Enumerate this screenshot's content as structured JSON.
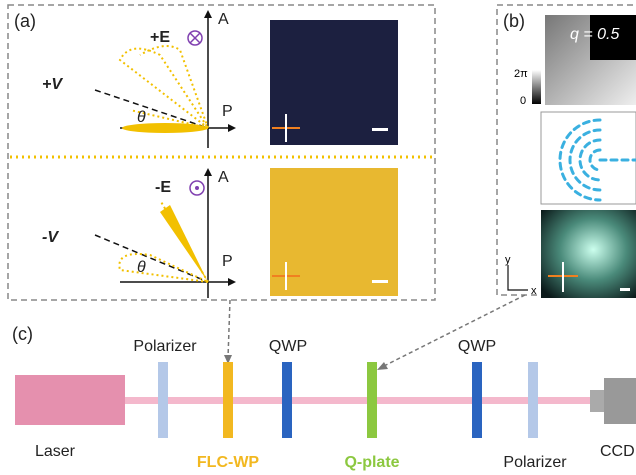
{
  "panel_a": {
    "label": "(a)",
    "top": {
      "field": "+E",
      "axis_v": "A",
      "voltage": "+V",
      "angle": "θ",
      "axis_h": "P"
    },
    "bottom": {
      "field": "-E",
      "axis_v": "A",
      "voltage": "-V",
      "angle": "θ",
      "axis_h": "P"
    }
  },
  "panel_b": {
    "label": "(b)",
    "q": "q = 0.5",
    "scale_max": "2π",
    "scale_min": "0",
    "axis_y": "y",
    "axis_x": "x"
  },
  "panel_c": {
    "label": "(c)",
    "components": [
      "Laser",
      "Polarizer",
      "FLC-WP",
      "QWP",
      "Q-plate",
      "QWP",
      "Polarizer",
      "CCD"
    ]
  }
}
